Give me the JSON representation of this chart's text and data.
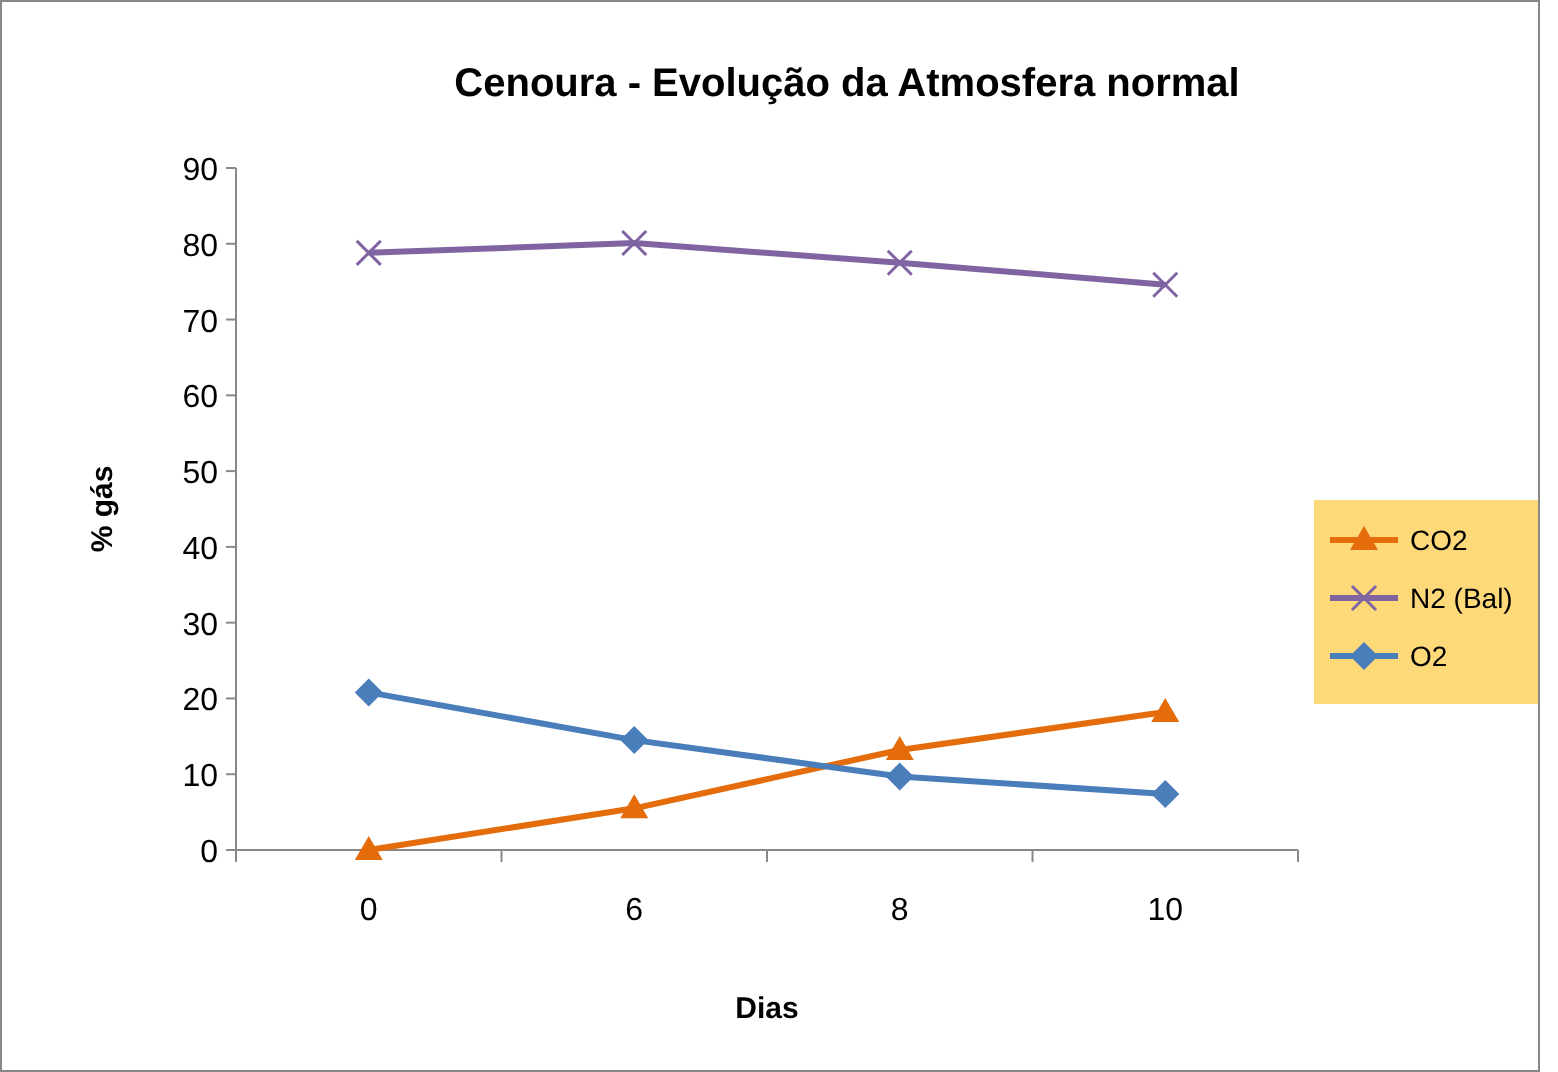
{
  "chart_data": {
    "type": "line",
    "title": "Cenoura - Evolução da Atmosfera normal",
    "xlabel": "Dias",
    "ylabel": "% gás",
    "categories": [
      "0",
      "6",
      "8",
      "10"
    ],
    "ylim": [
      0,
      90
    ],
    "yticks": [
      0,
      10,
      20,
      30,
      40,
      50,
      60,
      70,
      80,
      90
    ],
    "legend": "right",
    "grid": false,
    "series": [
      {
        "name": "CO2",
        "color": "#e46c0a",
        "marker": "triangle",
        "values": [
          0,
          5.5,
          13.2,
          18.2
        ]
      },
      {
        "name": "N2 (Bal)",
        "color": "#8064a2",
        "marker": "cross",
        "values": [
          78.8,
          80.1,
          77.5,
          74.6
        ]
      },
      {
        "name": "O2",
        "color": "#4a7ebb",
        "marker": "diamond",
        "values": [
          20.8,
          14.5,
          9.7,
          7.4
        ]
      }
    ]
  }
}
